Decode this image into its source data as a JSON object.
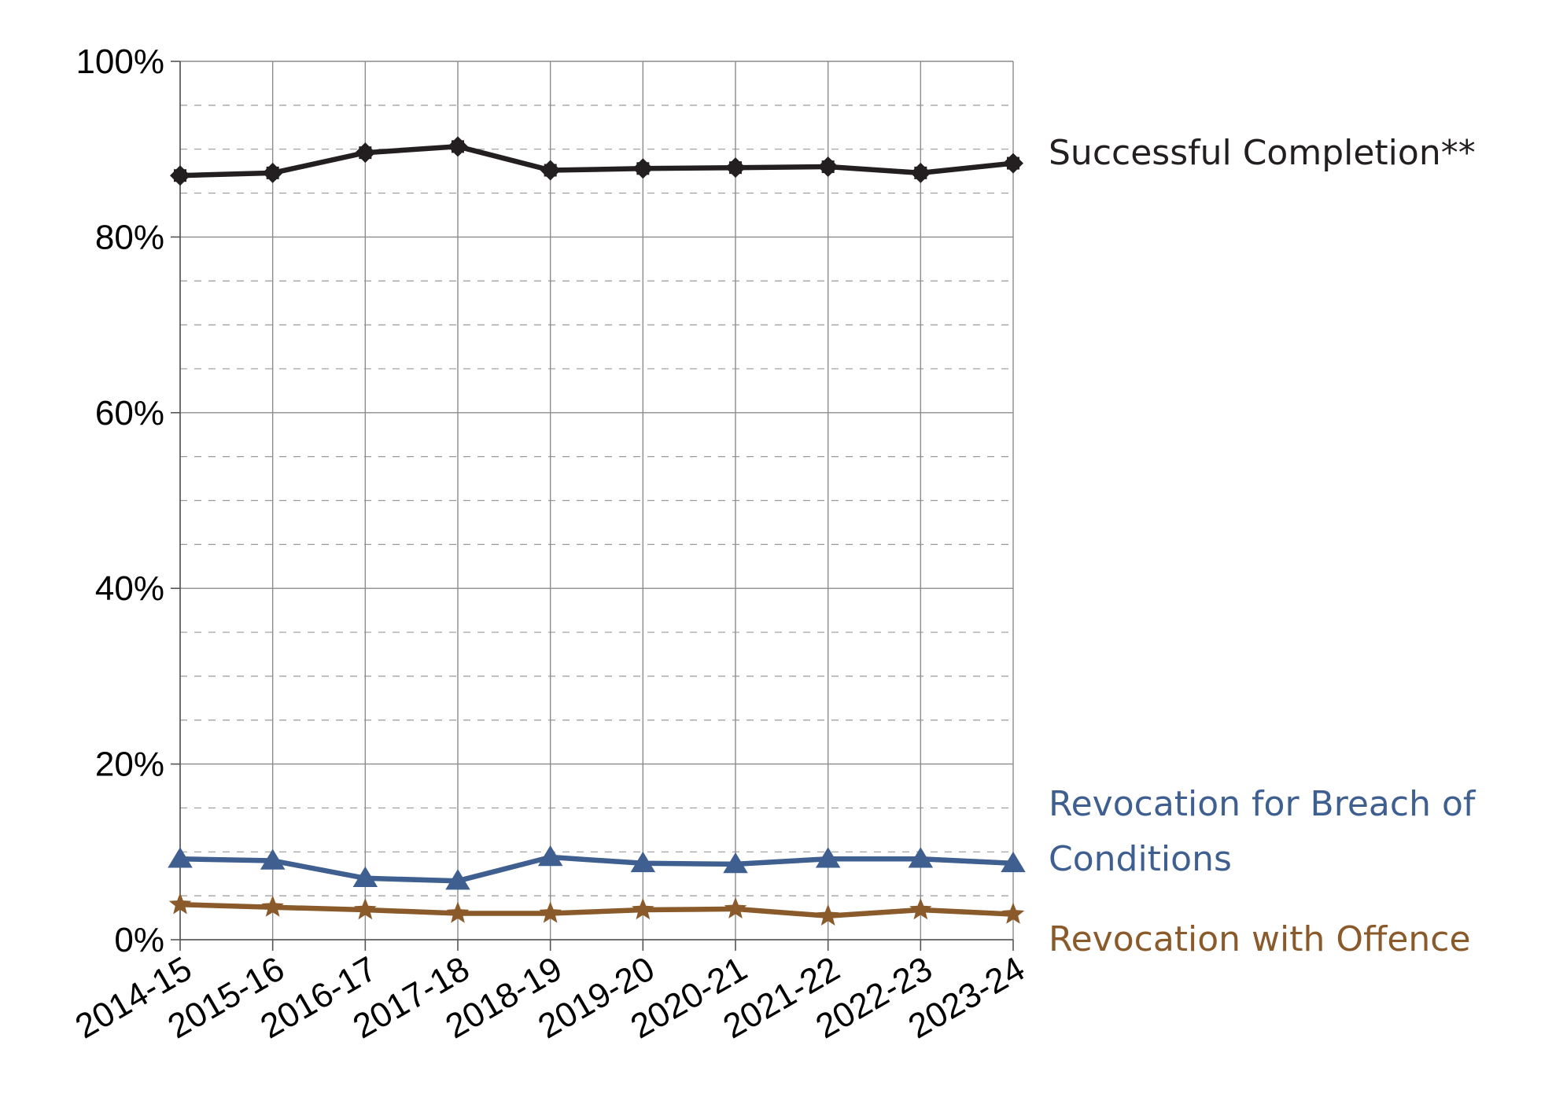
{
  "chart_data": {
    "type": "line",
    "categories": [
      "2014-15",
      "2015-16",
      "2016-17",
      "2017-18",
      "2018-19",
      "2019-20",
      "2020-21",
      "2021-22",
      "2022-23",
      "2023-24"
    ],
    "ylim": [
      0,
      100
    ],
    "y_ticks": [
      "0%",
      "20%",
      "40%",
      "60%",
      "80%",
      "100%"
    ],
    "y_tick_values": [
      0,
      20,
      40,
      60,
      80,
      100
    ],
    "y_minor_ticks": [
      5,
      10,
      15,
      25,
      30,
      35,
      45,
      50,
      55,
      65,
      70,
      75,
      85,
      90,
      95
    ],
    "grid": true,
    "series": [
      {
        "name": "Successful Completion**",
        "label_lines": [
          "Successful Completion**"
        ],
        "color": "#231f20",
        "marker": "diamond-star",
        "values": [
          87.0,
          87.3,
          89.6,
          90.3,
          87.6,
          87.8,
          87.9,
          88.0,
          87.3,
          88.4
        ]
      },
      {
        "name": "Revocation for Breach of Conditions",
        "label_lines": [
          "Revocation for Breach of",
          "Conditions"
        ],
        "color": "#3e5f8f",
        "marker": "triangle",
        "values": [
          9.2,
          9.0,
          7.0,
          6.7,
          9.4,
          8.7,
          8.6,
          9.2,
          9.2,
          8.7
        ]
      },
      {
        "name": "Revocation with Offence",
        "label_lines": [
          "Revocation with Offence"
        ],
        "color": "#8a5a2b",
        "marker": "star",
        "values": [
          4.0,
          3.7,
          3.4,
          3.0,
          3.0,
          3.4,
          3.5,
          2.7,
          3.4,
          2.9
        ]
      }
    ]
  }
}
